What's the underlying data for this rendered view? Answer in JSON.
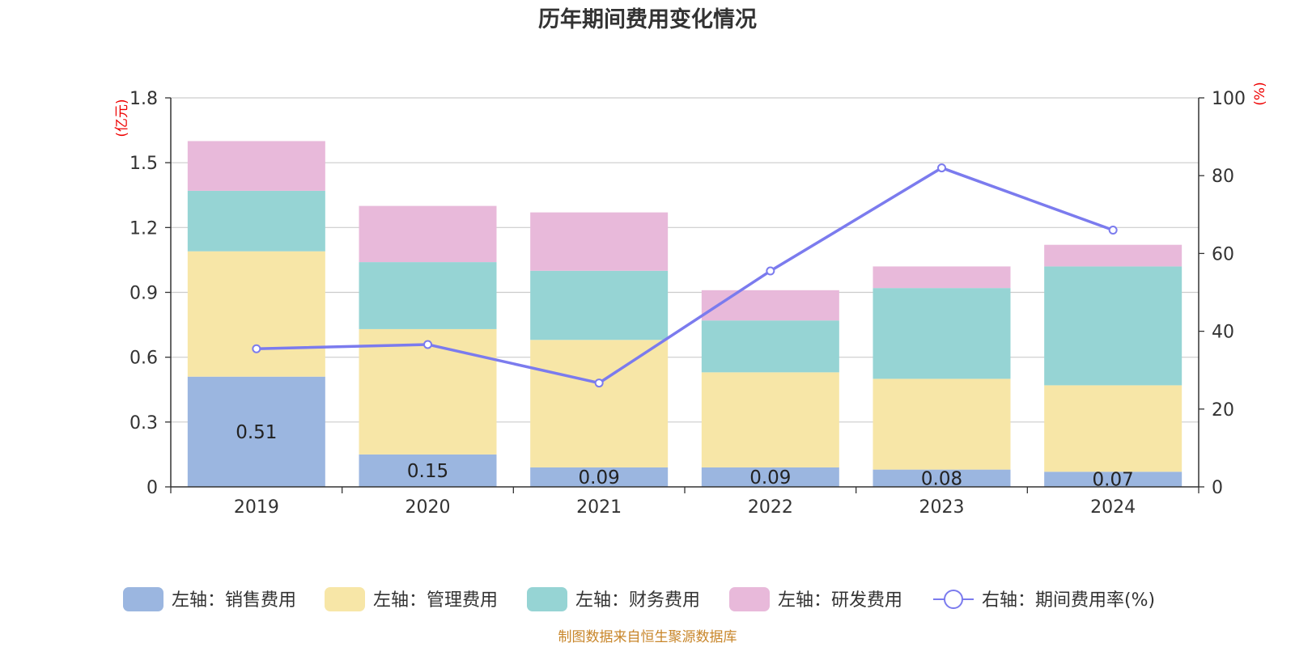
{
  "chart_data": {
    "type": "bar",
    "stacked": true,
    "title": "历年期间费用变化情况",
    "categories": [
      "2019",
      "2020",
      "2021",
      "2022",
      "2023",
      "2024"
    ],
    "left_axis": {
      "unit": "(亿元)",
      "ylim": [
        0,
        1.8
      ],
      "ticks": [
        0,
        0.3,
        0.6,
        0.9,
        1.2,
        1.5,
        1.8
      ],
      "tick_labels": [
        "0",
        "0.3",
        "0.6",
        "0.9",
        "1.2",
        "1.5",
        "1.8"
      ]
    },
    "right_axis": {
      "unit": "(%)",
      "ylim": [
        0,
        100
      ],
      "ticks": [
        0,
        20,
        40,
        60,
        80,
        100
      ],
      "tick_labels": [
        "0",
        "20",
        "40",
        "60",
        "80",
        "100"
      ]
    },
    "series": [
      {
        "name": "左轴：销售费用",
        "axis": "left",
        "type": "bar",
        "color": "#9bb6e0",
        "values": [
          0.51,
          0.15,
          0.09,
          0.09,
          0.08,
          0.07
        ],
        "labels": [
          "0.51",
          "0.15",
          "0.09",
          "0.09",
          "0.08",
          "0.07"
        ]
      },
      {
        "name": "左轴：管理费用",
        "axis": "left",
        "type": "bar",
        "color": "#f7e6a7",
        "values": [
          0.58,
          0.58,
          0.59,
          0.44,
          0.42,
          0.4
        ]
      },
      {
        "name": "左轴：财务费用",
        "axis": "left",
        "type": "bar",
        "color": "#96d4d4",
        "values": [
          0.28,
          0.31,
          0.32,
          0.24,
          0.42,
          0.55
        ]
      },
      {
        "name": "左轴：研发费用",
        "axis": "left",
        "type": "bar",
        "color": "#e8b9da",
        "values": [
          0.23,
          0.26,
          0.27,
          0.14,
          0.1,
          0.1
        ]
      },
      {
        "name": "右轴：期间费用率(%)",
        "axis": "right",
        "type": "line",
        "color": "#7b7bee",
        "values": [
          35.5,
          36.6,
          26.7,
          55.5,
          82.0,
          66.0
        ]
      }
    ],
    "legend_position": "bottom",
    "grid": true,
    "source": "制图数据来自恒生聚源数据库"
  }
}
